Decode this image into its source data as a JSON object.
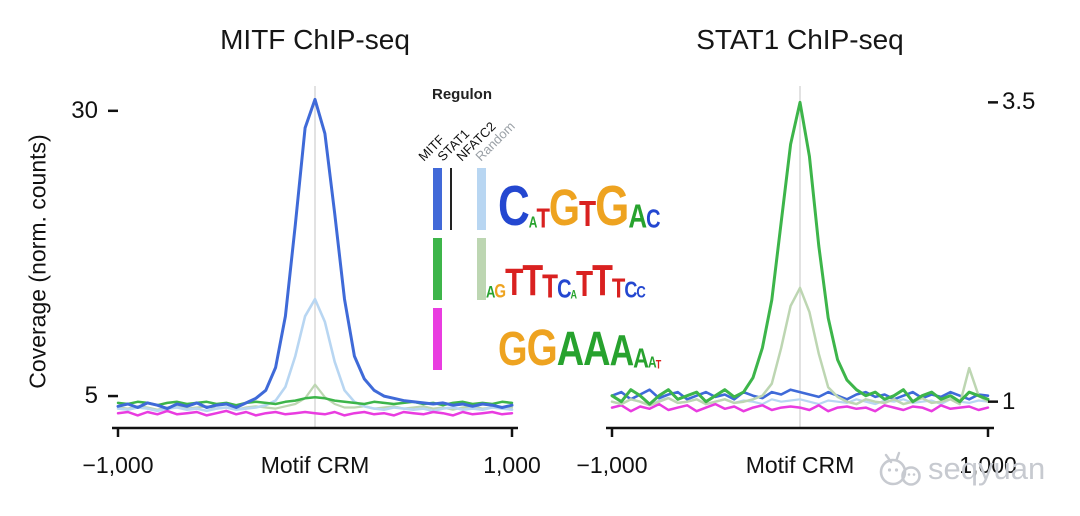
{
  "watermark": {
    "text": "seqyuan",
    "color": "#c7cad0"
  },
  "legend": {
    "title": "Regulon",
    "col_labels": [
      {
        "label": "MITF",
        "color": "#111111"
      },
      {
        "label": "STAT1",
        "color": "#111111"
      },
      {
        "label": "NFATC2",
        "color": "#111111"
      },
      {
        "label": "Random",
        "color": "#9aa0a6"
      }
    ],
    "rows": [
      {
        "bars": [
          "#4169d8",
          "#b8d6f2"
        ],
        "divider": true,
        "logo": [
          {
            "c": "C",
            "color": "#2447d0",
            "s": 44
          },
          {
            "c": "A",
            "color": "#27a22e",
            "s": 12
          },
          {
            "c": "T",
            "color": "#d92120",
            "s": 22
          },
          {
            "c": "G",
            "color": "#eea320",
            "s": 40
          },
          {
            "c": "T",
            "color": "#d92120",
            "s": 28
          },
          {
            "c": "G",
            "color": "#eea320",
            "s": 44
          },
          {
            "c": "A",
            "color": "#27a22e",
            "s": 26
          },
          {
            "c": "C",
            "color": "#2447d0",
            "s": 20
          }
        ]
      },
      {
        "bars": [
          "#3db54a",
          "#bdd6b2"
        ],
        "divider": false,
        "logo": [
          {
            "c": "A",
            "color": "#27a22e",
            "s": 13
          },
          {
            "c": "G",
            "color": "#eea320",
            "s": 15
          },
          {
            "c": "T",
            "color": "#d92120",
            "s": 30
          },
          {
            "c": "T",
            "color": "#d92120",
            "s": 34
          },
          {
            "c": "T",
            "color": "#d92120",
            "s": 26
          },
          {
            "c": "C",
            "color": "#2447d0",
            "s": 20
          },
          {
            "c": "A",
            "color": "#27a22e",
            "s": 9
          },
          {
            "c": "T",
            "color": "#d92120",
            "s": 28
          },
          {
            "c": "T",
            "color": "#d92120",
            "s": 34
          },
          {
            "c": "T",
            "color": "#d92120",
            "s": 22
          },
          {
            "c": "C",
            "color": "#2447d0",
            "s": 18
          },
          {
            "c": "C",
            "color": "#2447d0",
            "s": 13
          }
        ]
      },
      {
        "bars": [
          "#e93ce0"
        ],
        "divider": false,
        "logo": [
          {
            "c": "G",
            "color": "#eea320",
            "s": 38
          },
          {
            "c": "G",
            "color": "#eea320",
            "s": 40
          },
          {
            "c": "A",
            "color": "#27a22e",
            "s": 38
          },
          {
            "c": "A",
            "color": "#27a22e",
            "s": 38
          },
          {
            "c": "A",
            "color": "#27a22e",
            "s": 34
          },
          {
            "c": "A",
            "color": "#27a22e",
            "s": 22
          },
          {
            "c": "A",
            "color": "#27a22e",
            "s": 12
          },
          {
            "c": "T",
            "color": "#d92120",
            "s": 9
          }
        ]
      }
    ]
  },
  "chart_data": [
    {
      "type": "line",
      "title": "MITF ChIP-seq",
      "ylabel": "Coverage (norm. counts)",
      "xlabel": "",
      "x_start": -1000,
      "x_step": 50,
      "xlim": [
        -1000,
        1000
      ],
      "ylim": [
        2.2,
        32
      ],
      "ytick_side": "left",
      "yticks": [
        {
          "v": 30,
          "label": "30"
        },
        {
          "v": 5,
          "label": "5"
        }
      ],
      "xticks": [
        {
          "x": -1000,
          "label": "−1,000"
        },
        {
          "x": 0,
          "label": "Motif CRM"
        },
        {
          "x": 1000,
          "label": "1,000"
        }
      ],
      "center_line_x": 0,
      "series": [
        {
          "name": "STAT1-light",
          "color": "#bdd6b2",
          "width": 2.2,
          "values": [
            4.0,
            3.9,
            4.1,
            4.0,
            3.8,
            4.0,
            4.1,
            3.9,
            4.0,
            4.1,
            3.9,
            4.0,
            3.8,
            4.0,
            4.1,
            4.0,
            3.9,
            4.1,
            4.3,
            4.8,
            6.0,
            4.9,
            4.3,
            4.0,
            4.0,
            4.1,
            3.9,
            4.0,
            4.1,
            3.9,
            4.0,
            4.1,
            3.9,
            4.0,
            3.8,
            4.0,
            4.1,
            3.9,
            4.0,
            3.9,
            4.0
          ]
        },
        {
          "name": "MITF-light",
          "color": "#b8d6f2",
          "width": 2.6,
          "values": [
            3.9,
            3.8,
            4.0,
            3.9,
            3.7,
            3.9,
            4.0,
            3.8,
            3.9,
            3.7,
            3.9,
            4.0,
            3.8,
            3.9,
            4.0,
            4.2,
            4.6,
            5.8,
            8.5,
            12,
            13.5,
            11.5,
            8.0,
            5.5,
            4.5,
            4.1,
            3.9,
            3.8,
            4.0,
            3.9,
            3.8,
            3.9,
            3.7,
            3.9,
            4.0,
            3.8,
            3.9,
            3.8,
            4.0,
            3.9,
            3.8
          ]
        },
        {
          "name": "NFATC2",
          "color": "#e93ce0",
          "width": 2.5,
          "values": [
            3.5,
            3.6,
            3.3,
            3.6,
            3.4,
            3.7,
            3.4,
            3.5,
            3.6,
            3.3,
            3.5,
            3.7,
            3.4,
            3.6,
            3.3,
            3.5,
            3.6,
            3.4,
            3.5,
            3.6,
            3.5,
            3.4,
            3.6,
            3.3,
            3.5,
            3.6,
            3.4,
            3.5,
            3.3,
            3.6,
            3.5,
            3.4,
            3.6,
            3.5,
            3.3,
            3.6,
            3.4,
            3.5,
            3.6,
            3.4,
            3.5
          ]
        },
        {
          "name": "STAT1",
          "color": "#3db54a",
          "width": 2.5,
          "values": [
            4.4,
            4.3,
            4.5,
            4.4,
            4.2,
            4.4,
            4.5,
            4.3,
            4.4,
            4.5,
            4.3,
            4.4,
            4.2,
            4.4,
            4.5,
            4.4,
            4.3,
            4.5,
            4.6,
            4.8,
            4.9,
            4.8,
            4.6,
            4.5,
            4.4,
            4.3,
            4.5,
            4.4,
            4.3,
            4.4,
            4.5,
            4.3,
            4.4,
            4.2,
            4.4,
            4.5,
            4.3,
            4.4,
            4.3,
            4.5,
            4.4
          ]
        },
        {
          "name": "MITF",
          "color": "#3f6ad8",
          "width": 3,
          "values": [
            4.1,
            4.3,
            4.0,
            4.4,
            4.2,
            3.9,
            4.3,
            4.1,
            4.4,
            4.0,
            4.2,
            4.3,
            4.0,
            4.4,
            4.8,
            5.5,
            7.5,
            12,
            20,
            28.5,
            31,
            28,
            21,
            13.5,
            8.5,
            6.5,
            5.5,
            5.0,
            4.8,
            4.6,
            4.5,
            4.4,
            4.3,
            4.4,
            4.2,
            4.3,
            4.1,
            4.3,
            4.2,
            4.0,
            4.2
          ]
        }
      ]
    },
    {
      "type": "line",
      "title": "STAT1 ChIP-seq",
      "ylabel": "",
      "xlabel": "",
      "x_start": -1000,
      "x_step": 50,
      "xlim": [
        -1000,
        1000
      ],
      "ylim": [
        0.78,
        3.62
      ],
      "ytick_side": "right",
      "yticks": [
        {
          "v": 3.5,
          "label": "3.5"
        },
        {
          "v": 1,
          "label": "1"
        }
      ],
      "xticks": [
        {
          "x": -1000,
          "label": "−1,000"
        },
        {
          "x": 0,
          "label": "Motif CRM"
        },
        {
          "x": 1000,
          "label": "1,000"
        }
      ],
      "center_line_x": 0,
      "series": [
        {
          "name": "MITF-light",
          "color": "#b8d6f2",
          "width": 2.2,
          "values": [
            1.0,
            0.98,
            1.02,
            1.0,
            0.97,
            1.01,
            1.03,
            0.99,
            1.0,
            1.02,
            0.98,
            1.0,
            1.02,
            0.99,
            1.01,
            1.0,
            0.98,
            1.02,
            1.0,
            1.01,
            1.02,
            1.0,
            0.98,
            1.01,
            1.0,
            0.99,
            1.02,
            1.0,
            0.98,
            1.01,
            1.0,
            1.02,
            0.99,
            1.0,
            1.01,
            0.98,
            1.02,
            1.0,
            0.99,
            1.01,
            1.0
          ]
        },
        {
          "name": "NFATC2",
          "color": "#e93ce0",
          "width": 2.5,
          "values": [
            0.95,
            0.97,
            0.92,
            0.96,
            0.94,
            0.98,
            0.93,
            0.95,
            0.97,
            0.92,
            0.95,
            0.98,
            0.94,
            0.96,
            0.92,
            0.95,
            0.97,
            0.93,
            0.95,
            0.96,
            0.95,
            0.93,
            0.97,
            0.92,
            0.95,
            0.96,
            0.94,
            0.95,
            0.92,
            0.97,
            0.95,
            0.93,
            0.96,
            0.95,
            0.92,
            0.97,
            0.94,
            0.95,
            0.96,
            0.93,
            0.95
          ]
        },
        {
          "name": "MITF",
          "color": "#3f6ad8",
          "width": 2.6,
          "values": [
            1.05,
            1.08,
            1.02,
            1.06,
            1.1,
            1.03,
            1.06,
            1.08,
            1.02,
            1.05,
            1.08,
            1.04,
            1.06,
            1.02,
            1.08,
            1.05,
            1.03,
            1.08,
            1.06,
            1.1,
            1.08,
            1.06,
            1.04,
            1.08,
            1.05,
            1.02,
            1.06,
            1.08,
            1.04,
            1.06,
            1.02,
            1.05,
            1.08,
            1.03,
            1.06,
            1.04,
            1.08,
            1.05,
            1.02,
            1.06,
            1.05
          ]
        },
        {
          "name": "STAT1-light",
          "color": "#bdd6b2",
          "width": 2.5,
          "values": [
            1.0,
            0.98,
            1.02,
            1.0,
            0.97,
            1.0,
            1.03,
            0.99,
            1.0,
            1.02,
            0.98,
            1.0,
            1.02,
            0.99,
            1.0,
            1.02,
            1.05,
            1.15,
            1.45,
            1.8,
            1.95,
            1.75,
            1.4,
            1.12,
            1.04,
            1.0,
            0.98,
            1.02,
            1.0,
            0.99,
            1.02,
            0.98,
            1.0,
            1.03,
            0.99,
            1.0,
            1.02,
            0.98,
            1.28,
            1.05,
            1.0
          ]
        },
        {
          "name": "STAT1",
          "color": "#3db54a",
          "width": 3,
          "values": [
            1.05,
            1.0,
            1.1,
            1.05,
            0.98,
            1.05,
            1.1,
            1.02,
            1.05,
            1.08,
            1.0,
            1.05,
            1.1,
            1.04,
            1.08,
            1.2,
            1.45,
            1.85,
            2.5,
            3.15,
            3.5,
            3.05,
            2.3,
            1.7,
            1.35,
            1.18,
            1.1,
            1.05,
            1.08,
            1.02,
            1.05,
            1.1,
            1.0,
            1.05,
            1.08,
            1.02,
            1.05,
            1.0,
            1.08,
            1.05,
            1.02
          ]
        }
      ]
    }
  ]
}
